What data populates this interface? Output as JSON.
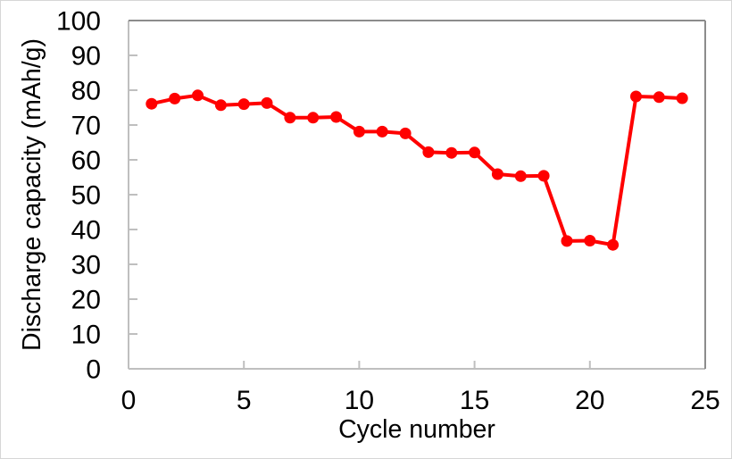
{
  "figure": {
    "background": "#ffffff",
    "frame_border_color": "#d6d6d6"
  },
  "chart_data": {
    "type": "line",
    "title": "",
    "xlabel": "Cycle number",
    "ylabel": "Discharge capacity (mAh/g)",
    "x": [
      1,
      2,
      3,
      4,
      5,
      6,
      7,
      8,
      9,
      10,
      11,
      12,
      13,
      14,
      15,
      16,
      17,
      18,
      19,
      20,
      21,
      22,
      23,
      24
    ],
    "series": [
      {
        "name": "discharge-capacity",
        "color": "#ff0000",
        "marker": "circle",
        "values": [
          76.1,
          77.6,
          78.5,
          75.7,
          76.0,
          76.3,
          72.1,
          72.1,
          72.3,
          68.1,
          68.1,
          67.6,
          62.2,
          62.0,
          62.1,
          55.9,
          55.3,
          55.4,
          36.7,
          36.8,
          35.6,
          78.2,
          78.0,
          77.7
        ]
      }
    ],
    "xlim": [
      0,
      25
    ],
    "ylim": [
      0,
      100
    ],
    "x_ticks": [
      0,
      5,
      10,
      15,
      20,
      25
    ],
    "y_ticks": [
      0,
      10,
      20,
      30,
      40,
      50,
      60,
      70,
      80,
      90,
      100
    ],
    "grid": false,
    "legend": "none",
    "tick_style": "inside",
    "axis_color": "#bfbfbf",
    "plot_border_top_right_color": "#8c8c8c",
    "text_color": "#000000"
  }
}
